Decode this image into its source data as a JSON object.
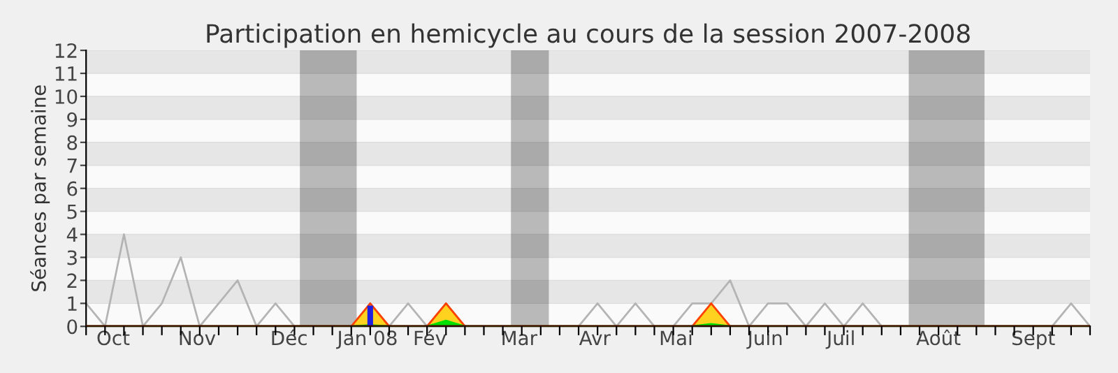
{
  "chart_data": {
    "type": "line",
    "title": "Participation en hemicycle au cours de la session 2007-2008",
    "ylabel": "Séances par semaine",
    "x": [
      "2007-09-24",
      "2007-10-01",
      "2007-10-08",
      "2007-10-15",
      "2007-10-22",
      "2007-10-29",
      "2007-11-05",
      "2007-11-12",
      "2007-11-19",
      "2007-11-26",
      "2007-12-03",
      "2007-12-10",
      "2007-12-17",
      "2007-12-24",
      "2007-12-31",
      "2008-01-07",
      "2008-01-14",
      "2008-01-21",
      "2008-01-28",
      "2008-02-04",
      "2008-02-11",
      "2008-02-18",
      "2008-02-25",
      "2008-03-03",
      "2008-03-10",
      "2008-03-17",
      "2008-03-24",
      "2008-03-31",
      "2008-04-07",
      "2008-04-14",
      "2008-04-21",
      "2008-04-28",
      "2008-05-05",
      "2008-05-12",
      "2008-05-19",
      "2008-05-26",
      "2008-06-02",
      "2008-06-09",
      "2008-06-16",
      "2008-06-23",
      "2008-06-30",
      "2008-07-07",
      "2008-07-14",
      "2008-07-21",
      "2008-07-28",
      "2008-08-04",
      "2008-08-11",
      "2008-08-18",
      "2008-08-25",
      "2008-09-01",
      "2008-09-08",
      "2008-09-15",
      "2008-09-22",
      "2008-09-29"
    ],
    "series": [
      {
        "type": "area",
        "color": "#ffd21f",
        "values": [
          0,
          0,
          0,
          0,
          0,
          0,
          0,
          0,
          0,
          0,
          0,
          0,
          0,
          0,
          0,
          1,
          0,
          0,
          0,
          1,
          0,
          0,
          0,
          0,
          0,
          0,
          0,
          0,
          0,
          0,
          0,
          0,
          0,
          1,
          0,
          0,
          0,
          0,
          0,
          0,
          0,
          0,
          0,
          0,
          0,
          0,
          0,
          0,
          0,
          0,
          0,
          0,
          0,
          0
        ]
      },
      {
        "type": "area",
        "color": "#00e000",
        "values": [
          0,
          0,
          0,
          0,
          0,
          0,
          0,
          0,
          0,
          0,
          0,
          0,
          0,
          0,
          0,
          0.05,
          0,
          0,
          0,
          0.25,
          0,
          0,
          0,
          0,
          0,
          0,
          0,
          0,
          0,
          0,
          0,
          0,
          0,
          0.1,
          0,
          0,
          0,
          0,
          0,
          0,
          0,
          0,
          0,
          0,
          0,
          0,
          0,
          0,
          0,
          0,
          0,
          0,
          0,
          0
        ]
      },
      {
        "type": "bar",
        "color": "#2020e0",
        "values": [
          0,
          0,
          0,
          0,
          0,
          0,
          0,
          0,
          0,
          0,
          0,
          0,
          0,
          0,
          0,
          0.9,
          0,
          0,
          0,
          0,
          0,
          0,
          0,
          0,
          0,
          0,
          0,
          0,
          0,
          0,
          0,
          0,
          0,
          0,
          0,
          0,
          0,
          0,
          0,
          0,
          0,
          0,
          0,
          0,
          0,
          0,
          0,
          0,
          0,
          0,
          0,
          0,
          0,
          0
        ]
      },
      {
        "color": "#b4b4b4",
        "values": [
          1,
          0,
          4,
          0,
          1,
          3,
          0,
          1,
          2,
          0,
          1,
          0,
          0,
          0,
          0,
          1,
          0,
          1,
          0,
          1,
          0,
          0,
          0,
          0,
          0,
          0,
          0,
          1,
          0,
          1,
          0,
          0,
          1,
          1,
          2,
          0,
          1,
          1,
          0,
          1,
          0,
          1,
          0,
          0,
          0,
          0,
          0,
          0,
          0,
          0,
          0,
          0,
          1,
          0
        ]
      }
    ],
    "xlim": [
      "2007-09-24",
      "2008-09-29"
    ],
    "xticks": [
      {
        "value": "2007-10-04",
        "label": "Oct"
      },
      {
        "value": "2007-11-04",
        "label": "Nov"
      },
      {
        "value": "2007-12-08",
        "label": "Déc"
      },
      {
        "value": "2008-01-06",
        "label": "Jan 08"
      },
      {
        "value": "2008-01-29",
        "label": "Fév"
      },
      {
        "value": "2008-03-02",
        "label": "Mar"
      },
      {
        "value": "2008-03-30",
        "label": "Avr"
      },
      {
        "value": "2008-04-29",
        "label": "Mai"
      },
      {
        "value": "2008-06-01",
        "label": "Juin"
      },
      {
        "value": "2008-06-29",
        "label": "Juil"
      },
      {
        "value": "2008-08-04",
        "label": "Août"
      },
      {
        "value": "2008-09-08",
        "label": "Sept"
      }
    ],
    "ylim": [
      0,
      12
    ],
    "yticks": [
      0,
      1,
      2,
      3,
      4,
      5,
      6,
      7,
      8,
      9,
      10,
      11,
      12
    ],
    "bands": [
      {
        "axis": "x",
        "from": "2007-12-12",
        "to": "2008-01-02",
        "color": "#000000"
      },
      {
        "axis": "x",
        "from": "2008-02-28",
        "to": "2008-03-13",
        "color": "#000000"
      },
      {
        "axis": "x",
        "from": "2008-07-24",
        "to": "2008-08-21",
        "color": "#000000"
      }
    ],
    "grid": "y",
    "legend": false
  }
}
